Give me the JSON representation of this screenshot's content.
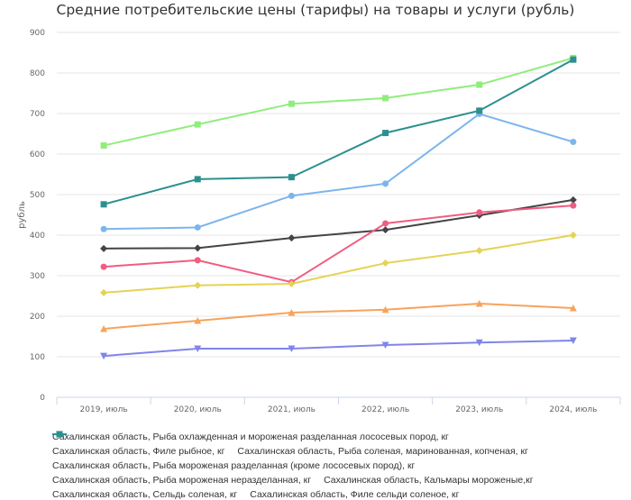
{
  "chart_data": {
    "type": "line",
    "title": "Средние потребительские цены (тарифы) на товары и услуги (рубль)",
    "xlabel": "",
    "ylabel": "рубль",
    "ylim": [
      0,
      900
    ],
    "yticks": [
      "0",
      "100",
      "200",
      "300",
      "400",
      "500",
      "600",
      "700",
      "800",
      "900"
    ],
    "categories": [
      "2019, июль",
      "2020, июль",
      "2021, июль",
      "2022, июль",
      "2023, июль",
      "2024, июль"
    ],
    "legend_position": "bottom-left",
    "series": [
      {
        "name": "Сахалинская область, Рыба охлажденная и мороженая разделанная лососевых пород, кг",
        "color": "#7cb5ec",
        "marker": "circle",
        "values": [
          415,
          419,
          497,
          527,
          699,
          630
        ]
      },
      {
        "name": "Сахалинская область, Филе рыбное, кг",
        "color": "#434348",
        "marker": "diamond",
        "values": [
          367,
          368,
          393,
          413,
          449,
          487
        ]
      },
      {
        "name": "Сахалинская область, Рыба соленая, маринованная, копченая, кг",
        "color": "#90ed7d",
        "marker": "square",
        "values": [
          621,
          673,
          724,
          738,
          771,
          837
        ]
      },
      {
        "name": "Сахалинская область, Рыба мороженая разделанная (кроме лососевых пород), кг",
        "color": "#f7a35c",
        "marker": "triangle",
        "values": [
          169,
          189,
          209,
          216,
          231,
          220
        ]
      },
      {
        "name": "Сахалинская область, Рыба мороженая неразделанная, кг",
        "color": "#8085e9",
        "marker": "triangle-down",
        "values": [
          102,
          120,
          120,
          129,
          135,
          140
        ]
      },
      {
        "name": "Сахалинская область, Кальмары мороженые,кг",
        "color": "#f15c80",
        "marker": "circle",
        "values": [
          322,
          338,
          284,
          429,
          456,
          473
        ]
      },
      {
        "name": "Сахалинская область, Сельдь соленая, кг",
        "color": "#e4d354",
        "marker": "diamond",
        "values": [
          258,
          276,
          280,
          331,
          362,
          400
        ]
      },
      {
        "name": "Сахалинская область, Филе сельди соленое, кг",
        "color": "#2b908f",
        "marker": "square",
        "values": [
          476,
          538,
          543,
          652,
          707,
          833
        ]
      }
    ],
    "legend_rows": [
      [
        0
      ],
      [
        1,
        2
      ],
      [
        3
      ],
      [
        4,
        5
      ],
      [
        6,
        7
      ]
    ]
  }
}
